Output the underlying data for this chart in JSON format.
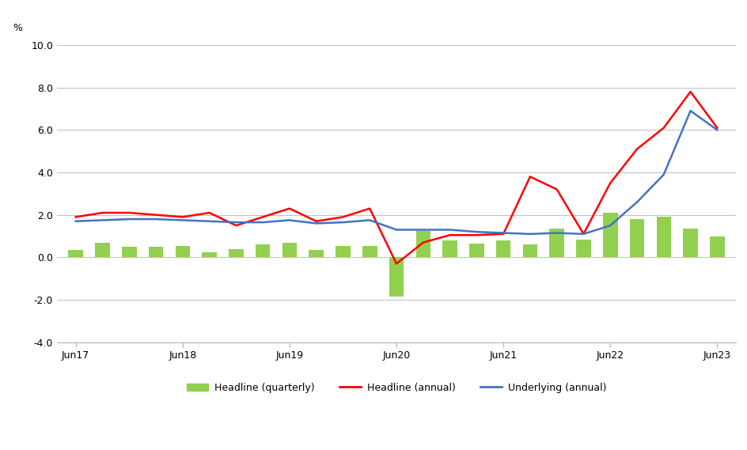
{
  "x_labels": [
    "Jun17",
    "Jun18",
    "Jun19",
    "Jun20",
    "Jun21",
    "Jun22",
    "Jun23"
  ],
  "x_tick_positions": [
    0,
    4,
    8,
    12,
    16,
    20,
    24
  ],
  "bar_x": [
    0,
    1,
    2,
    3,
    4,
    5,
    6,
    7,
    8,
    9,
    10,
    11,
    12,
    13,
    14,
    15,
    16,
    17,
    18,
    19,
    20,
    21,
    22,
    23,
    24
  ],
  "bar_values": [
    0.35,
    0.7,
    0.5,
    0.5,
    0.55,
    0.25,
    0.4,
    0.6,
    0.7,
    0.35,
    0.55,
    0.55,
    -1.85,
    1.25,
    0.8,
    0.65,
    0.8,
    0.6,
    1.35,
    0.85,
    2.1,
    1.8,
    1.9,
    1.35,
    1.0
  ],
  "headline_annual_x": [
    0,
    1,
    2,
    3,
    4,
    5,
    6,
    7,
    8,
    9,
    10,
    11,
    12,
    13,
    14,
    15,
    16,
    17,
    18,
    19,
    20,
    21,
    22,
    23,
    24
  ],
  "headline_annual_y": [
    1.9,
    2.1,
    2.1,
    2.0,
    1.9,
    2.1,
    1.5,
    1.9,
    2.3,
    1.7,
    1.9,
    2.3,
    -0.3,
    0.7,
    1.05,
    1.05,
    1.1,
    3.8,
    3.2,
    1.1,
    3.5,
    5.1,
    6.1,
    7.8,
    6.1
  ],
  "underlying_annual_x": [
    0,
    1,
    2,
    3,
    4,
    5,
    6,
    7,
    8,
    9,
    10,
    11,
    12,
    13,
    14,
    15,
    16,
    17,
    18,
    19,
    20,
    21,
    22,
    23,
    24
  ],
  "underlying_annual_y": [
    1.7,
    1.75,
    1.8,
    1.8,
    1.75,
    1.7,
    1.65,
    1.65,
    1.75,
    1.6,
    1.65,
    1.75,
    1.3,
    1.3,
    1.3,
    1.2,
    1.15,
    1.1,
    1.15,
    1.1,
    1.5,
    2.6,
    3.9,
    6.9,
    6.0
  ],
  "ylim": [
    -4.0,
    10.0
  ],
  "yticks": [
    -4.0,
    -2.0,
    0.0,
    2.0,
    4.0,
    6.0,
    8.0,
    10.0
  ],
  "ylabel": "%",
  "bar_color": "#92d050",
  "headline_color": "#ff0000",
  "underlying_color": "#4472c4",
  "legend_labels": [
    "Headline (quarterly)",
    "Headline (annual)",
    "Underlying (annual)"
  ],
  "background_color": "#ffffff",
  "grid_color": "#c0c0c0"
}
